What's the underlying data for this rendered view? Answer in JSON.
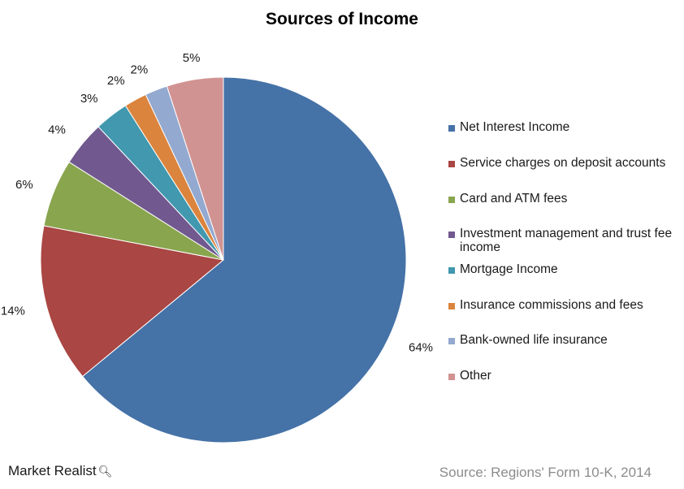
{
  "chart_data": {
    "type": "pie",
    "title": "Sources of Income",
    "start_angle_deg": 0,
    "direction": "clockwise",
    "slices": [
      {
        "label": "Net Interest Income",
        "value": 64,
        "display": "64%",
        "color": "#4572A7"
      },
      {
        "label": "Service charges on deposit accounts",
        "value": 14,
        "display": "14%",
        "color": "#AA4643"
      },
      {
        "label": "Card and ATM fees",
        "value": 6,
        "display": "6%",
        "color": "#89A54E"
      },
      {
        "label": "Investment management and trust fee income",
        "value": 4,
        "display": "4%",
        "color": "#71588F"
      },
      {
        "label": "Mortgage Income",
        "value": 3,
        "display": "3%",
        "color": "#4198AF"
      },
      {
        "label": "Insurance commissions and fees",
        "value": 2,
        "display": "2%",
        "color": "#DB843D"
      },
      {
        "label": "Bank-owned life insurance",
        "value": 2,
        "display": "2%",
        "color": "#93A9CF"
      },
      {
        "label": "Other",
        "value": 5,
        "display": "5%",
        "color": "#D19392"
      }
    ],
    "legend_position": "right"
  },
  "footer": {
    "brand": "Market Realist",
    "source": "Source: Regions' Form 10-K, 2014"
  }
}
